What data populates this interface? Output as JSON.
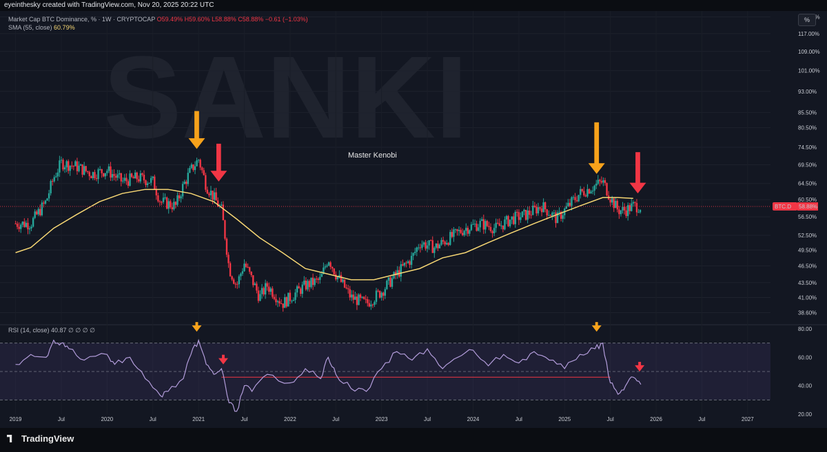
{
  "header": {
    "title": "eyeinthesky created with TradingView.com, Nov 20, 2025 20:22 UTC"
  },
  "legend": {
    "symbol": "Market Cap BTC Dominance, % · 1W · CRYPTOCAP",
    "o": "O59.49%",
    "h": "H59.60%",
    "l": "L58.88%",
    "c": "C58.88%",
    "chg": "−0.61 (−1.03%)",
    "sma_label": "SMA (55, close)",
    "sma_value": "60.79%"
  },
  "rsi_legend": "RSI (14, close) 40.87 ∅ ∅ ∅ ∅",
  "percent_button": "%",
  "branding": "TradingView",
  "watermark": "SANKI",
  "colors": {
    "up": "#26a69a",
    "down": "#f23645",
    "sma": "#f7d774",
    "rsi": "#b39ddb",
    "bg": "#131722",
    "arrow_orange": "#f7a21b",
    "arrow_red": "#f23645"
  },
  "chart_data": [
    {
      "type": "candlestick",
      "title": "Market Cap BTC Dominance, % · 1W · CRYPTOCAP",
      "ylabel": "%",
      "scale": "log",
      "ylim": [
        37.0,
        128.0
      ],
      "y_ticks": [
        "125.00%",
        "117.00%",
        "109.00%",
        "101.00%",
        "93.00%",
        "85.50%",
        "80.50%",
        "74.50%",
        "69.50%",
        "64.50%",
        "60.50%",
        "56.50%",
        "52.50%",
        "49.50%",
        "46.50%",
        "43.50%",
        "41.00%",
        "38.60%"
      ],
      "x_ticks": [
        "2019",
        "Jul",
        "2020",
        "Jul",
        "2021",
        "Jul",
        "2022",
        "Jul",
        "2023",
        "Jul",
        "2024",
        "Jul",
        "2025",
        "Jul",
        "2026",
        "Jul",
        "2027"
      ],
      "price_label": {
        "name": "BTC.D",
        "value": "58.88%"
      },
      "annotation": "Master Kenobi",
      "series": [
        {
          "name": "BTC.D close",
          "points": [
            [
              "2019-01",
              55
            ],
            [
              "2019-03",
              55
            ],
            [
              "2019-05",
              60
            ],
            [
              "2019-06",
              66
            ],
            [
              "2019-07",
              70
            ],
            [
              "2019-09",
              69
            ],
            [
              "2019-11",
              67
            ],
            [
              "2020-01",
              68
            ],
            [
              "2020-03",
              65
            ],
            [
              "2020-05",
              66
            ],
            [
              "2020-07",
              65
            ],
            [
              "2020-08",
              60
            ],
            [
              "2020-10",
              59
            ],
            [
              "2020-11",
              64
            ],
            [
              "2020-12",
              68
            ],
            [
              "2021-01",
              71
            ],
            [
              "2021-02",
              64
            ],
            [
              "2021-04",
              58
            ],
            [
              "2021-05",
              46
            ],
            [
              "2021-06",
              43
            ],
            [
              "2021-07",
              47
            ],
            [
              "2021-08",
              44
            ],
            [
              "2021-09",
              41
            ],
            [
              "2021-10",
              43
            ],
            [
              "2021-12",
              40
            ],
            [
              "2022-01",
              41
            ],
            [
              "2022-03",
              43
            ],
            [
              "2022-05",
              44
            ],
            [
              "2022-06",
              48
            ],
            [
              "2022-07",
              45
            ],
            [
              "2022-09",
              41
            ],
            [
              "2022-11",
              40
            ],
            [
              "2023-01",
              42
            ],
            [
              "2023-03",
              45
            ],
            [
              "2023-05",
              48
            ],
            [
              "2023-06",
              51
            ],
            [
              "2023-08",
              50
            ],
            [
              "2023-10",
              52
            ],
            [
              "2023-12",
              54
            ],
            [
              "2024-02",
              55
            ],
            [
              "2024-04",
              54
            ],
            [
              "2024-06",
              56
            ],
            [
              "2024-08",
              57
            ],
            [
              "2024-10",
              59
            ],
            [
              "2024-12",
              56
            ],
            [
              "2025-01",
              58
            ],
            [
              "2025-03",
              62
            ],
            [
              "2025-04",
              63
            ],
            [
              "2025-05",
              64
            ],
            [
              "2025-06",
              65
            ],
            [
              "2025-07",
              61
            ],
            [
              "2025-08",
              58
            ],
            [
              "2025-09",
              58
            ],
            [
              "2025-10",
              59
            ],
            [
              "2025-11",
              58.88
            ]
          ]
        },
        {
          "name": "SMA (55, close)",
          "points": [
            [
              "2019-01",
              49
            ],
            [
              "2019-03",
              50
            ],
            [
              "2019-06",
              54
            ],
            [
              "2019-09",
              57
            ],
            [
              "2019-12",
              60
            ],
            [
              "2020-03",
              62
            ],
            [
              "2020-06",
              63
            ],
            [
              "2020-09",
              63
            ],
            [
              "2020-12",
              62
            ],
            [
              "2021-03",
              60
            ],
            [
              "2021-06",
              56
            ],
            [
              "2021-09",
              52
            ],
            [
              "2021-12",
              49
            ],
            [
              "2022-03",
              46
            ],
            [
              "2022-06",
              45
            ],
            [
              "2022-09",
              44
            ],
            [
              "2022-12",
              44
            ],
            [
              "2023-03",
              45
            ],
            [
              "2023-06",
              46
            ],
            [
              "2023-09",
              48
            ],
            [
              "2023-12",
              49
            ],
            [
              "2024-03",
              51
            ],
            [
              "2024-06",
              53
            ],
            [
              "2024-09",
              55
            ],
            [
              "2024-12",
              57
            ],
            [
              "2025-03",
              59
            ],
            [
              "2025-06",
              61
            ],
            [
              "2025-08",
              61
            ],
            [
              "2025-10",
              60.79
            ]
          ]
        }
      ]
    },
    {
      "type": "line",
      "title": "RSI (14, close)",
      "ylim": [
        20,
        80
      ],
      "y_ticks": [
        "80.00",
        "60.00",
        "40.00",
        "20.00"
      ],
      "bands": [
        30,
        50,
        70
      ],
      "horizontal_line": 46,
      "series": [
        {
          "name": "RSI",
          "points": [
            [
              "2019-01",
              55
            ],
            [
              "2019-03",
              62
            ],
            [
              "2019-05",
              60
            ],
            [
              "2019-06",
              72
            ],
            [
              "2019-07",
              70
            ],
            [
              "2019-08",
              66
            ],
            [
              "2019-10",
              58
            ],
            [
              "2020-01",
              62
            ],
            [
              "2020-02",
              55
            ],
            [
              "2020-04",
              60
            ],
            [
              "2020-06",
              45
            ],
            [
              "2020-08",
              33
            ],
            [
              "2020-09",
              36
            ],
            [
              "2020-11",
              45
            ],
            [
              "2020-12",
              62
            ],
            [
              "2021-01",
              72
            ],
            [
              "2021-02",
              55
            ],
            [
              "2021-03",
              48
            ],
            [
              "2021-04",
              52
            ],
            [
              "2021-05",
              28
            ],
            [
              "2021-06",
              22
            ],
            [
              "2021-07",
              40
            ],
            [
              "2021-08",
              36
            ],
            [
              "2021-10",
              48
            ],
            [
              "2022-01",
              42
            ],
            [
              "2022-03",
              52
            ],
            [
              "2022-05",
              45
            ],
            [
              "2022-06",
              60
            ],
            [
              "2022-07",
              48
            ],
            [
              "2022-09",
              38
            ],
            [
              "2022-11",
              36
            ],
            [
              "2023-01",
              52
            ],
            [
              "2023-03",
              64
            ],
            [
              "2023-05",
              58
            ],
            [
              "2023-07",
              66
            ],
            [
              "2023-09",
              52
            ],
            [
              "2023-11",
              60
            ],
            [
              "2024-01",
              65
            ],
            [
              "2024-03",
              54
            ],
            [
              "2024-05",
              62
            ],
            [
              "2024-07",
              56
            ],
            [
              "2024-09",
              64
            ],
            [
              "2024-11",
              58
            ],
            [
              "2025-01",
              52
            ],
            [
              "2025-03",
              62
            ],
            [
              "2025-05",
              66
            ],
            [
              "2025-06",
              70
            ],
            [
              "2025-07",
              42
            ],
            [
              "2025-08",
              34
            ],
            [
              "2025-09",
              40
            ],
            [
              "2025-10",
              46
            ],
            [
              "2025-11",
              40.87
            ]
          ]
        }
      ]
    }
  ]
}
